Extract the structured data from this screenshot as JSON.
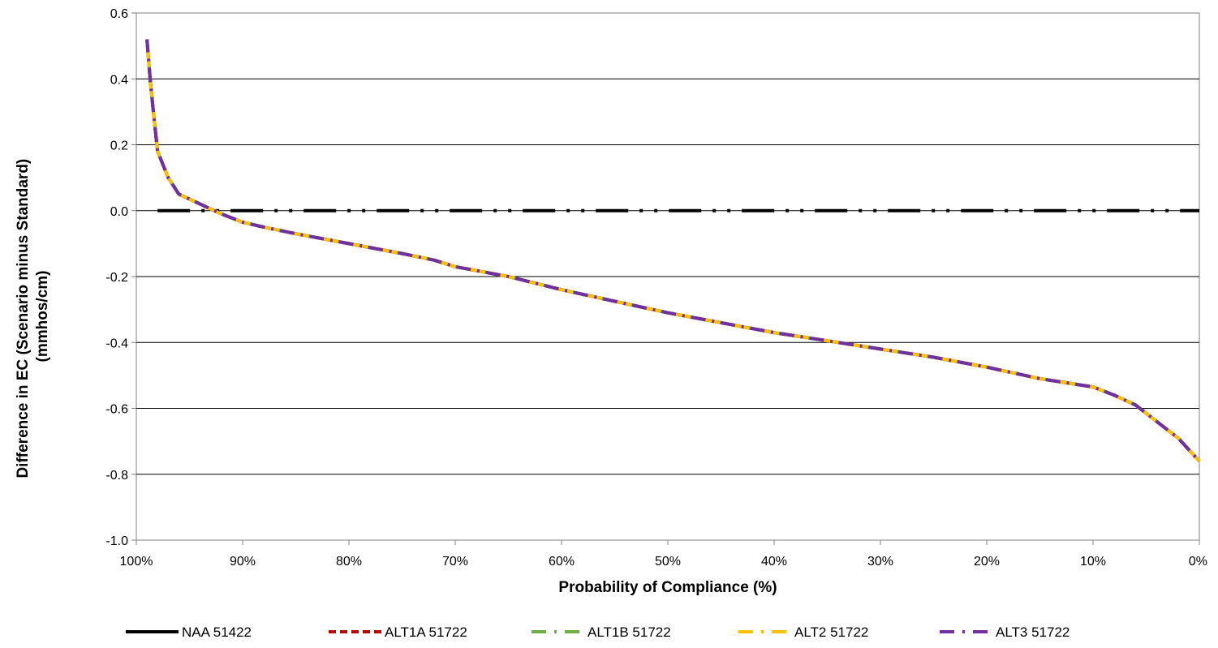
{
  "chart_data": {
    "type": "line",
    "xlabel": "Probability of Compliance (%)",
    "ylabel_lines": [
      "Difference in EC (Scenario minus Standard)",
      "(mmhos/cm)"
    ],
    "ylim": [
      -1.0,
      0.6
    ],
    "yticks": [
      -1.0,
      -0.8,
      -0.6,
      -0.4,
      -0.2,
      0.0,
      0.2,
      0.4,
      0.6
    ],
    "ytick_labels": [
      "-1.0",
      "-0.8",
      "-0.6",
      "-0.4",
      "-0.2",
      "0.0",
      "0.2",
      "0.4",
      "0.6"
    ],
    "xlim": [
      100,
      0
    ],
    "xticks": [
      100,
      90,
      80,
      70,
      60,
      50,
      40,
      30,
      20,
      10,
      0
    ],
    "xtick_labels": [
      "100%",
      "90%",
      "80%",
      "70%",
      "60%",
      "50%",
      "40%",
      "30%",
      "20%",
      "10%",
      "0%"
    ],
    "grid": "horizontal",
    "legend_position": "bottom",
    "reference_line": {
      "y": 0,
      "x_from": 98,
      "x_to": 0,
      "color": "#000000",
      "style": "dash-dot"
    },
    "curve": {
      "x": [
        99,
        98.7,
        98.4,
        98,
        97,
        96,
        94,
        92,
        90,
        88,
        85,
        80,
        75,
        72,
        70,
        65,
        60,
        55,
        50,
        45,
        40,
        35,
        30,
        25,
        20,
        15,
        10,
        8,
        6,
        4,
        2,
        0
      ],
      "y": [
        0.52,
        0.4,
        0.3,
        0.18,
        0.1,
        0.05,
        0.02,
        -0.01,
        -0.035,
        -0.05,
        -0.07,
        -0.1,
        -0.13,
        -0.15,
        -0.17,
        -0.2,
        -0.24,
        -0.275,
        -0.31,
        -0.34,
        -0.37,
        -0.395,
        -0.42,
        -0.445,
        -0.475,
        -0.51,
        -0.535,
        -0.56,
        -0.59,
        -0.64,
        -0.69,
        -0.76
      ]
    },
    "series": [
      {
        "name": "NAA 51422",
        "color": "#000000",
        "style": "solid"
      },
      {
        "name": "ALT1A 51722",
        "color": "#C00000",
        "style": "dash"
      },
      {
        "name": "ALT1B 51722",
        "color": "#70AD47",
        "style": "long-dash-dot"
      },
      {
        "name": "ALT2 51722",
        "color": "#FFC000",
        "style": "long-dash-dot"
      },
      {
        "name": "ALT3 51722",
        "color": "#7030A0",
        "style": "long-dash-dot"
      }
    ]
  }
}
